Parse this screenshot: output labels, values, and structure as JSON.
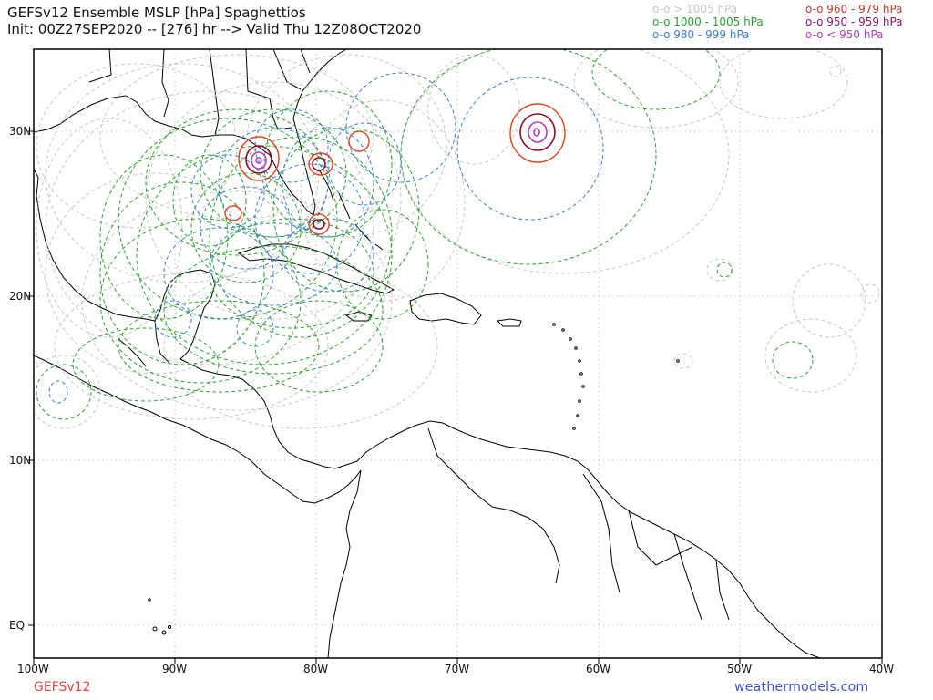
{
  "title": {
    "line1": "GEFSv12 Ensemble MSLP [hPa] Spaghettios",
    "line2": "Init: 00Z27SEP2020 -- [276] hr --> Valid Thu 12Z08OCT2020"
  },
  "legend": {
    "left": [
      {
        "label": "o-o > 1005 hPa",
        "color": "#c8c8c8"
      },
      {
        "label": "o-o 1000 - 1005 hPa",
        "color": "#2ca02c"
      },
      {
        "label": "o-o 980 - 999 hPa",
        "color": "#3a7fd0"
      }
    ],
    "right": [
      {
        "label": "o-o 960 - 979 hPa",
        "color": "#c0392b"
      },
      {
        "label": "o-o 950 - 959 hPa",
        "color": "#8b1a6b"
      },
      {
        "label": "o-o < 950 hPa",
        "color": "#b03fbf"
      }
    ]
  },
  "axes": {
    "lat_labels": [
      "30N",
      "20N",
      "10N",
      "EQ"
    ],
    "lon_labels": [
      "100W",
      "90W",
      "80W",
      "70W",
      "60W",
      "50W",
      "40W"
    ]
  },
  "footer": {
    "model": "GEFSv12",
    "site": "weathermodels.com"
  },
  "colors": {
    "light": "#c8c8c8",
    "green": "#2ca02c",
    "blue": "#3a7fd0",
    "red": "#e0451f",
    "darkred": "#8b0f2a",
    "magenta": "#b03fbf",
    "coast": "#000000"
  }
}
